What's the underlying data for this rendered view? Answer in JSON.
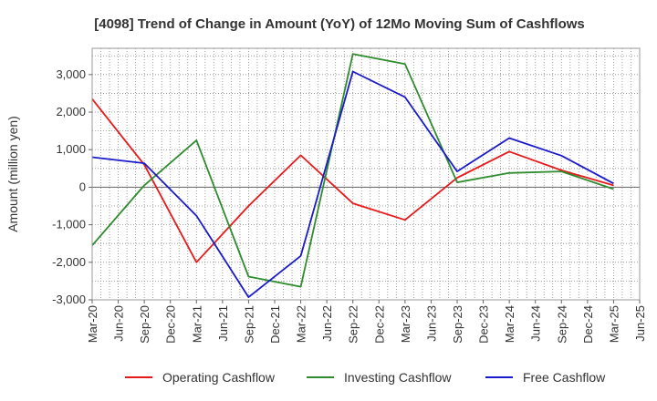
{
  "chart_data": {
    "type": "line",
    "title": "[4098]  Trend of Change in Amount (YoY) of 12Mo Moving Sum of Cashflows",
    "xlabel": "",
    "ylabel": "Amount (million yen)",
    "ylim": [
      -3000,
      3700
    ],
    "yticks": [
      3000,
      2000,
      1000,
      0,
      -1000,
      -2000,
      -3000
    ],
    "ytick_labels": [
      "3,000",
      "2,000",
      "1,000",
      "0",
      "-1,000",
      "-2,000",
      "-3,000"
    ],
    "x_tick_labels": [
      "Mar-20",
      "Jun-20",
      "Sep-20",
      "Dec-20",
      "Mar-21",
      "Jun-21",
      "Sep-21",
      "Dec-21",
      "Mar-22",
      "Jun-22",
      "Sep-22",
      "Dec-22",
      "Mar-23",
      "Jun-23",
      "Sep-23",
      "Dec-23",
      "Mar-24",
      "Jun-24",
      "Sep-24",
      "Dec-24",
      "Mar-25",
      "Jun-25"
    ],
    "grid": true,
    "legend_position": "bottom",
    "series": [
      {
        "name": "Operating Cashflow",
        "color": "#e8191a",
        "points": [
          {
            "x": "Mar-20",
            "y": 2350
          },
          {
            "x": "Sep-20",
            "y": 600
          },
          {
            "x": "Mar-21",
            "y": -2000
          },
          {
            "x": "Sep-21",
            "y": -500
          },
          {
            "x": "Mar-22",
            "y": 850
          },
          {
            "x": "Sep-22",
            "y": -430
          },
          {
            "x": "Mar-23",
            "y": -870
          },
          {
            "x": "Sep-23",
            "y": 250
          },
          {
            "x": "Mar-24",
            "y": 950
          },
          {
            "x": "Sep-24",
            "y": 450
          },
          {
            "x": "Mar-25",
            "y": 50
          }
        ]
      },
      {
        "name": "Investing Cashflow",
        "color": "#2e8b2e",
        "points": [
          {
            "x": "Mar-20",
            "y": -1550
          },
          {
            "x": "Sep-20",
            "y": 50
          },
          {
            "x": "Mar-21",
            "y": 1250
          },
          {
            "x": "Sep-21",
            "y": -2380
          },
          {
            "x": "Mar-22",
            "y": -2650
          },
          {
            "x": "Sep-22",
            "y": 3550
          },
          {
            "x": "Mar-23",
            "y": 3280
          },
          {
            "x": "Sep-23",
            "y": 130
          },
          {
            "x": "Mar-24",
            "y": 380
          },
          {
            "x": "Sep-24",
            "y": 420
          },
          {
            "x": "Mar-25",
            "y": -50
          }
        ]
      },
      {
        "name": "Free Cashflow",
        "color": "#1a1acd",
        "points": [
          {
            "x": "Mar-20",
            "y": 800
          },
          {
            "x": "Sep-20",
            "y": 640
          },
          {
            "x": "Mar-21",
            "y": -760
          },
          {
            "x": "Sep-21",
            "y": -2930
          },
          {
            "x": "Mar-22",
            "y": -1830
          },
          {
            "x": "Sep-22",
            "y": 3080
          },
          {
            "x": "Mar-23",
            "y": 2400
          },
          {
            "x": "Sep-23",
            "y": 420
          },
          {
            "x": "Mar-24",
            "y": 1310
          },
          {
            "x": "Sep-24",
            "y": 840
          },
          {
            "x": "Mar-25",
            "y": 100
          }
        ]
      }
    ]
  }
}
